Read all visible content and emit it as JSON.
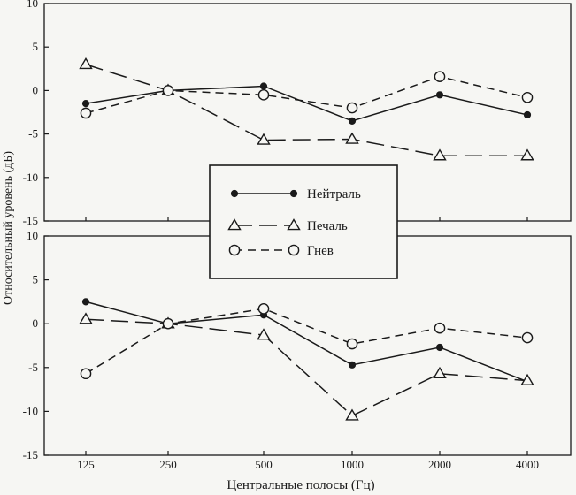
{
  "chart_data": [
    {
      "type": "line",
      "panel": "top",
      "categories": [
        "125",
        "250",
        "500",
        "1000",
        "2000",
        "4000"
      ],
      "ylim": [
        -15,
        10
      ],
      "yticks": [
        "10",
        "5",
        "0",
        "-5",
        "-10",
        "-15"
      ],
      "grid": false,
      "series": [
        {
          "name": "Нейтраль",
          "values": [
            -1.5,
            0,
            0.5,
            -3.5,
            -0.5,
            -2.8
          ]
        },
        {
          "name": "Печаль",
          "values": [
            3,
            0,
            -5.7,
            -5.6,
            -7.5,
            -7.5
          ]
        },
        {
          "name": "Гнев",
          "values": [
            -2.6,
            0,
            -0.5,
            -2,
            1.6,
            -0.8
          ]
        }
      ]
    },
    {
      "type": "line",
      "panel": "bottom",
      "categories": [
        "125",
        "250",
        "500",
        "1000",
        "2000",
        "4000"
      ],
      "ylim": [
        -15,
        10
      ],
      "yticks": [
        "10",
        "5",
        "0",
        "-5",
        "-10",
        "-15"
      ],
      "grid": false,
      "series": [
        {
          "name": "Нейтраль",
          "values": [
            2.5,
            0,
            1,
            -4.7,
            -2.7,
            -6.6
          ]
        },
        {
          "name": "Печаль",
          "values": [
            0.5,
            0,
            -1.3,
            -10.5,
            -5.7,
            -6.5
          ]
        },
        {
          "name": "Гнев",
          "values": [
            -5.7,
            0,
            1.7,
            -2.3,
            -0.5,
            -1.6
          ]
        }
      ]
    }
  ],
  "axes": {
    "xlabel": "Центральные полосы (Гц)",
    "ylabel": "Относительный уровень (дБ)"
  },
  "legend": {
    "placement": "center",
    "items": [
      {
        "label": "Нейтраль",
        "marker": "filled-circle",
        "line": "solid"
      },
      {
        "label": "Печаль",
        "marker": "open-triangle",
        "line": "long-dash"
      },
      {
        "label": "Гнев",
        "marker": "open-circle",
        "line": "short-dash"
      }
    ]
  },
  "colors": {
    "ink": "#1a1a1a",
    "paper": "#f6f6f3"
  }
}
